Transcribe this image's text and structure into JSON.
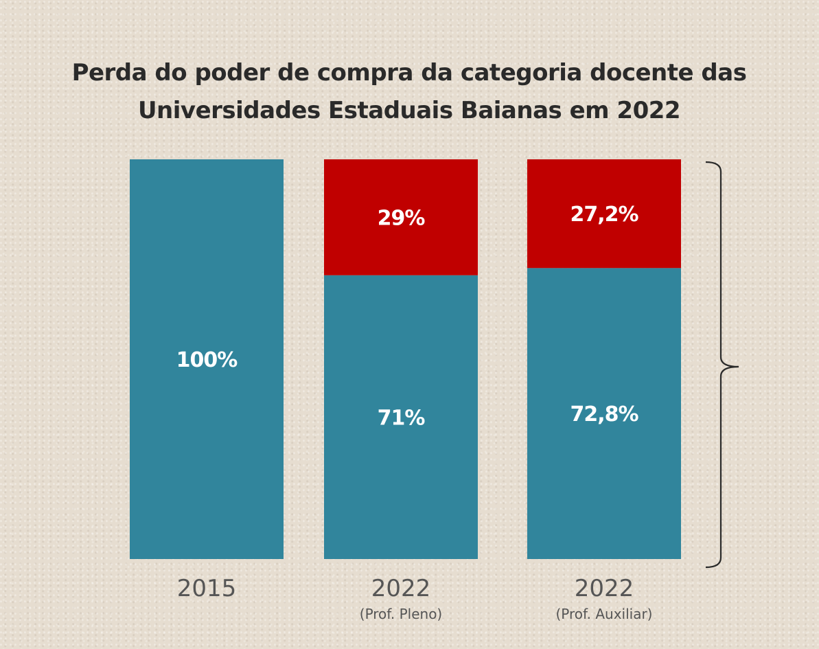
{
  "chart_data": {
    "type": "bar",
    "title": "Perda do poder de compra da categoria docente das Universidades Estaduais Baianas em 2022",
    "title_lines": [
      "Perda do poder de compra da categoria docente das",
      "Universidades Estaduais Baianas em 2022"
    ],
    "stacked": true,
    "categories": [
      "2015",
      "2022",
      "2022"
    ],
    "category_sublabels": [
      "",
      "(Prof. Pleno)",
      "(Prof. Auxiliar)"
    ],
    "series": [
      {
        "values": [
          100,
          71,
          72.8
        ],
        "labels": [
          "100%",
          "71%",
          "72,8%"
        ],
        "color": "#31859c"
      },
      {
        "values": [
          0,
          29,
          27.2
        ],
        "labels": [
          "",
          "29%",
          "27,2%"
        ],
        "color": "#c00000"
      }
    ],
    "ylim": [
      0,
      100
    ],
    "grid": false,
    "legend": "none",
    "background_color": "#e6ddd0",
    "annotations": [
      {
        "type": "brace",
        "side": "right",
        "spans": "2022 bars"
      }
    ]
  }
}
